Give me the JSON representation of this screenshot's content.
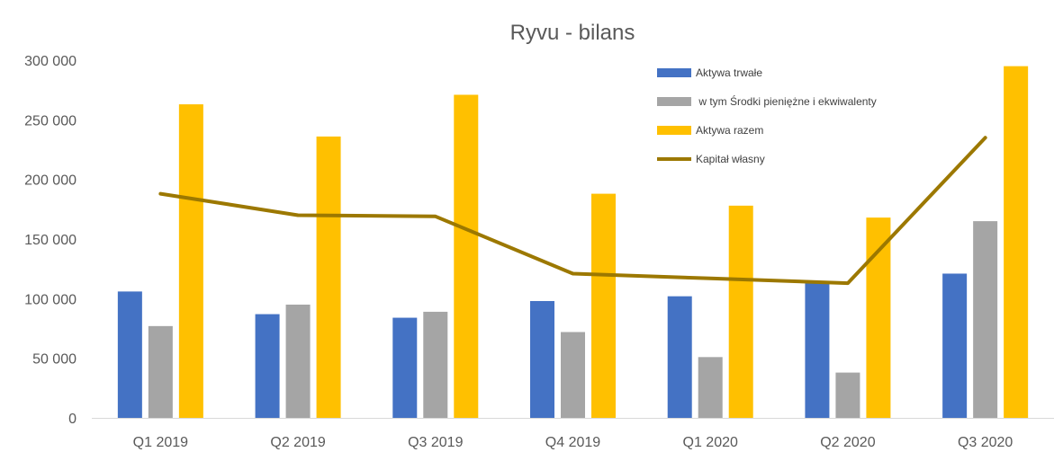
{
  "chart_data": {
    "type": "bar",
    "title": "Ryvu - bilans",
    "categories": [
      "Q1 2019",
      "Q2 2019",
      "Q3 2019",
      "Q4 2019",
      "Q1 2020",
      "Q2 2020",
      "Q3 2020"
    ],
    "series": [
      {
        "name": "Aktywa trwałe",
        "type": "bar",
        "color": "#4472C4",
        "values": [
          106000,
          87000,
          84000,
          98000,
          102000,
          113000,
          121000
        ]
      },
      {
        "name": " w tym Środki pieniężne i ekwiwalenty",
        "type": "bar",
        "color": "#A5A5A5",
        "values": [
          77000,
          95000,
          89000,
          72000,
          51000,
          38000,
          165000
        ]
      },
      {
        "name": "Aktywa razem",
        "type": "bar",
        "color": "#FFC000",
        "values": [
          263000,
          236000,
          271000,
          188000,
          178000,
          168000,
          295000
        ]
      },
      {
        "name": "Kapitał własny",
        "type": "line",
        "color": "#9C7800",
        "values": [
          188000,
          170000,
          169000,
          121000,
          117000,
          113000,
          235000
        ]
      }
    ],
    "ylim": [
      0,
      300000
    ],
    "yticks": [
      0,
      50000,
      100000,
      150000,
      200000,
      250000,
      300000
    ],
    "ytick_labels": [
      "0",
      "50 000",
      "100 000",
      "150 000",
      "200 000",
      "250 000",
      "300 000"
    ],
    "grid": false,
    "legend_position": "top-right"
  }
}
